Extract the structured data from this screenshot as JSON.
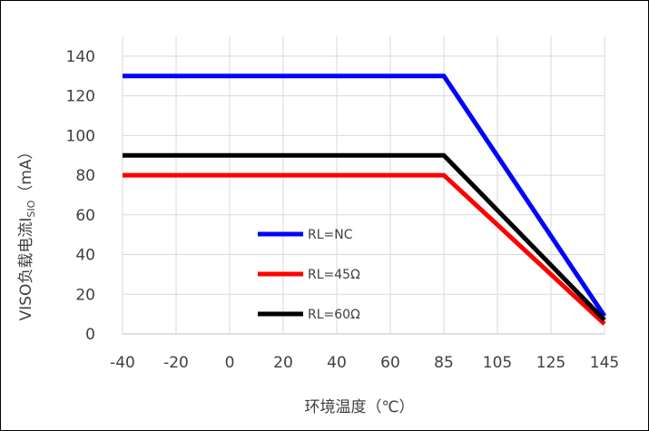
{
  "chart_data": {
    "type": "line",
    "title": "",
    "xlabel": "环境温度（℃）",
    "ylabel": "VISO负载电流I",
    "ylabel_sub": "SIO",
    "ylabel_unit": "（mA）",
    "x_ticks": [
      -40,
      -20,
      0,
      20,
      40,
      60,
      85,
      105,
      125,
      145
    ],
    "y_ticks": [
      0,
      20,
      40,
      60,
      80,
      100,
      120,
      140
    ],
    "ylim": [
      0,
      150
    ],
    "grid": true,
    "legend_position": "inside-center-left",
    "series": [
      {
        "name": "RL=NC",
        "color": "#0000ff",
        "x": [
          -40,
          85,
          145
        ],
        "y": [
          130,
          130,
          9
        ]
      },
      {
        "name": "RL=45Ω",
        "color": "#ff0000",
        "x": [
          -40,
          85,
          145
        ],
        "y": [
          80,
          80,
          5
        ]
      },
      {
        "name": "RL=60Ω",
        "color": "#000000",
        "x": [
          -40,
          85,
          145
        ],
        "y": [
          90,
          90,
          7
        ]
      }
    ]
  }
}
